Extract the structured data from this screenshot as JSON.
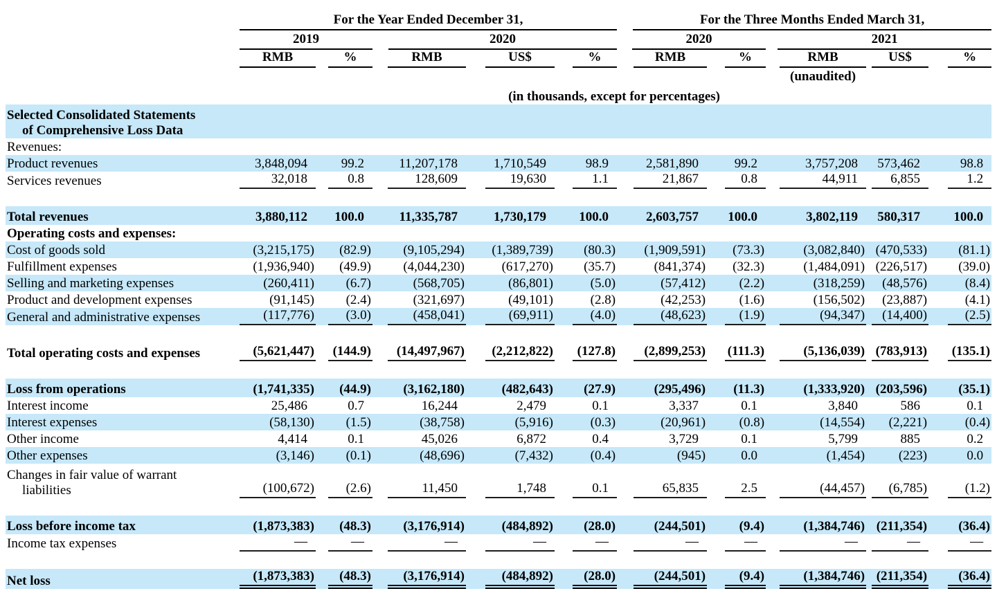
{
  "page": {
    "background": "#ffffff",
    "highlight_color": "#c6e8f9",
    "rule_color": "#000000"
  },
  "header": {
    "year_group_label": "For the Year Ended December 31,",
    "quarter_group_label": "For the Three Months Ended March 31,",
    "year_cols": [
      "2019",
      "2020",
      "2020",
      "2021"
    ],
    "unit_cols": [
      "RMB",
      "%",
      "RMB",
      "US$",
      "%",
      "RMB",
      "%",
      "RMB",
      "US$",
      "%"
    ],
    "unaudited_note": "(unaudited)",
    "units_note": "(in thousands, except for percentages)"
  },
  "table": {
    "rows": [
      {
        "type": "section",
        "label": "Selected Consolidated Statements",
        "label2": "of Comprehensive Loss Data",
        "bold": true,
        "highlight": true
      },
      {
        "type": "heading",
        "label": "Revenues:",
        "bold": false
      },
      {
        "type": "data",
        "label": "Product revenues",
        "highlight": true,
        "values": [
          "3,848,094",
          "99.2",
          "11,207,178",
          "1,710,549",
          "98.9",
          "2,581,890",
          "99.2",
          "3,757,208",
          "573,462",
          "98.8"
        ]
      },
      {
        "type": "data",
        "label": "Services revenues",
        "underline": "single",
        "values": [
          "32,018",
          "0.8",
          "128,609",
          "19,630",
          "1.1",
          "21,867",
          "0.8",
          "44,911",
          "6,855",
          "1.2"
        ]
      },
      {
        "type": "spacer"
      },
      {
        "type": "data",
        "label": "Total revenues",
        "bold": true,
        "highlight": true,
        "size": "lg",
        "values": [
          "3,880,112",
          "100.0",
          "11,335,787",
          "1,730,179",
          "100.0",
          "2,603,757",
          "100.0",
          "3,802,119",
          "580,317",
          "100.0"
        ]
      },
      {
        "type": "heading",
        "label": "Operating costs and expenses:",
        "bold": true
      },
      {
        "type": "data",
        "label": "Cost of goods sold",
        "highlight": true,
        "values": [
          "(3,215,175)",
          "(82.9)",
          "(9,105,294)",
          "(1,389,739)",
          "(80.3)",
          "(1,909,591)",
          "(73.3)",
          "(3,082,840)",
          "(470,533)",
          "(81.1)"
        ]
      },
      {
        "type": "data",
        "label": "Fulfillment expenses",
        "values": [
          "(1,936,940)",
          "(49.9)",
          "(4,044,230)",
          "(617,270)",
          "(35.7)",
          "(841,374)",
          "(32.3)",
          "(1,484,091)",
          "(226,517)",
          "(39.0)"
        ]
      },
      {
        "type": "data",
        "label": "Selling and marketing expenses",
        "highlight": true,
        "values": [
          "(260,411)",
          "(6.7)",
          "(568,705)",
          "(86,801)",
          "(5.0)",
          "(57,412)",
          "(2.2)",
          "(318,259)",
          "(48,576)",
          "(8.4)"
        ]
      },
      {
        "type": "data",
        "label": "Product and development expenses",
        "values": [
          "(91,145)",
          "(2.4)",
          "(321,697)",
          "(49,101)",
          "(2.8)",
          "(42,253)",
          "(1.6)",
          "(156,502)",
          "(23,887)",
          "(4.1)"
        ]
      },
      {
        "type": "data",
        "label": "General and administrative expenses",
        "highlight": true,
        "underline": "single",
        "values": [
          "(117,776)",
          "(3.0)",
          "(458,041)",
          "(69,911)",
          "(4.0)",
          "(48,623)",
          "(1.9)",
          "(94,347)",
          "(14,400)",
          "(2.5)"
        ]
      },
      {
        "type": "spacer"
      },
      {
        "type": "data",
        "label": "Total operating costs and expenses",
        "bold": true,
        "underline": "single",
        "size": "lg",
        "values": [
          "(5,621,447)",
          "(144.9)",
          "(14,497,967)",
          "(2,212,822)",
          "(127.8)",
          "(2,899,253)",
          "(111.3)",
          "(5,136,039)",
          "(783,913)",
          "(135.1)"
        ]
      },
      {
        "type": "spacer"
      },
      {
        "type": "data",
        "label": "Loss from operations",
        "bold": true,
        "highlight": true,
        "size": "lg",
        "values": [
          "(1,741,335)",
          "(44.9)",
          "(3,162,180)",
          "(482,643)",
          "(27.9)",
          "(295,496)",
          "(11.3)",
          "(1,333,920)",
          "(203,596)",
          "(35.1)"
        ]
      },
      {
        "type": "data",
        "label": "Interest income",
        "values": [
          "25,486",
          "0.7",
          "16,244",
          "2,479",
          "0.1",
          "3,337",
          "0.1",
          "3,840",
          "586",
          "0.1"
        ]
      },
      {
        "type": "data",
        "label": "Interest expenses",
        "highlight": true,
        "values": [
          "(58,130)",
          "(1.5)",
          "(38,758)",
          "(5,916)",
          "(0.3)",
          "(20,961)",
          "(0.8)",
          "(14,554)",
          "(2,221)",
          "(0.4)"
        ]
      },
      {
        "type": "data",
        "label": "Other income",
        "values": [
          "4,414",
          "0.1",
          "45,026",
          "6,872",
          "0.4",
          "3,729",
          "0.1",
          "5,799",
          "885",
          "0.2"
        ]
      },
      {
        "type": "data",
        "label": "Other expenses",
        "highlight": true,
        "values": [
          "(3,146)",
          "(0.1)",
          "(48,696)",
          "(7,432)",
          "(0.4)",
          "(945)",
          "0.0",
          "(1,454)",
          "(223)",
          "0.0"
        ]
      },
      {
        "type": "data",
        "label": "Changes in fair value of warrant",
        "label2": "liabilities",
        "underline": "single",
        "size": "tall",
        "values": [
          "(100,672)",
          "(2.6)",
          "11,450",
          "1,748",
          "0.1",
          "65,835",
          "2.5",
          "(44,457)",
          "(6,785)",
          "(1.2)"
        ]
      },
      {
        "type": "spacer"
      },
      {
        "type": "data",
        "label": "Loss before income tax",
        "bold": true,
        "highlight": true,
        "size": "lg",
        "values": [
          "(1,873,383)",
          "(48.3)",
          "(3,176,914)",
          "(484,892)",
          "(28.0)",
          "(244,501)",
          "(9.4)",
          "(1,384,746)",
          "(211,354)",
          "(36.4)"
        ]
      },
      {
        "type": "data",
        "label": "Income tax expenses",
        "underline": "single",
        "values": [
          "—",
          "—",
          "—",
          "—",
          "—",
          "—",
          "—",
          "—",
          "—",
          "—"
        ]
      },
      {
        "type": "spacer"
      },
      {
        "type": "data",
        "label": "Net loss",
        "bold": true,
        "highlight": true,
        "underline": "double",
        "size": "lg",
        "values": [
          "(1,873,383)",
          "(48.3)",
          "(3,176,914)",
          "(484,892)",
          "(28.0)",
          "(244,501)",
          "(9.4)",
          "(1,384,746)",
          "(211,354)",
          "(36.4)"
        ]
      }
    ]
  }
}
